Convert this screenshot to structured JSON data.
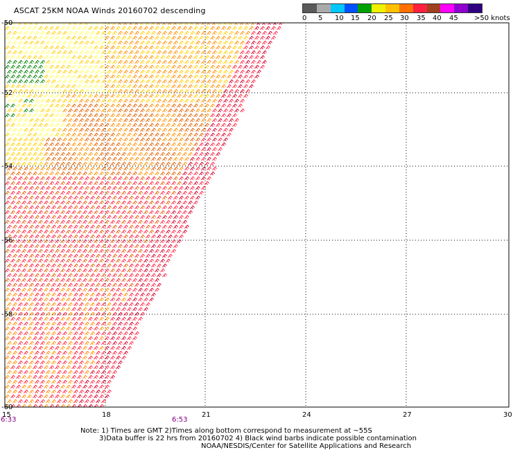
{
  "title": "ASCAT 25KM NOAA Winds 20160702 descending",
  "legend": {
    "unit_suffix": "knots",
    "labels": [
      "0",
      "5",
      "10",
      "15",
      "20",
      "25",
      "30",
      "35",
      "40",
      "45",
      ">50 knots"
    ],
    "colors": [
      "#5a5a5a",
      "#aaaaaa",
      "#00c8ff",
      "#0050ff",
      "#00a000",
      "#f0f000",
      "#ffc000",
      "#ff7000",
      "#ff2040",
      "#a04020",
      "#ff00ff",
      "#9000d0",
      "#300080"
    ]
  },
  "map": {
    "lat_labels": [
      "-50",
      "-52",
      "-54",
      "-56",
      "-58",
      "-60"
    ],
    "lon_labels": [
      "15",
      "18",
      "21",
      "24",
      "27",
      "30"
    ],
    "time_labels": [
      "6:33",
      "6:53"
    ],
    "wind_colors": {
      "light_yellow": "#ffff60",
      "yellow": "#ffd000",
      "orange": "#ff9000",
      "dark_orange": "#e06000",
      "red": "#ff2040",
      "crimson": "#d00030",
      "green": "#008000"
    }
  },
  "notes": {
    "line1": "Note: 1) Times are GMT 2)Times along bottom correspond to measurement at ~55S",
    "line2": "3)Data buffer is 22 hrs from 20160702 4) Black wind barbs indicate possible contamination",
    "line3": "NOAA/NESDIS/Center for Satellite Applications and Research"
  }
}
